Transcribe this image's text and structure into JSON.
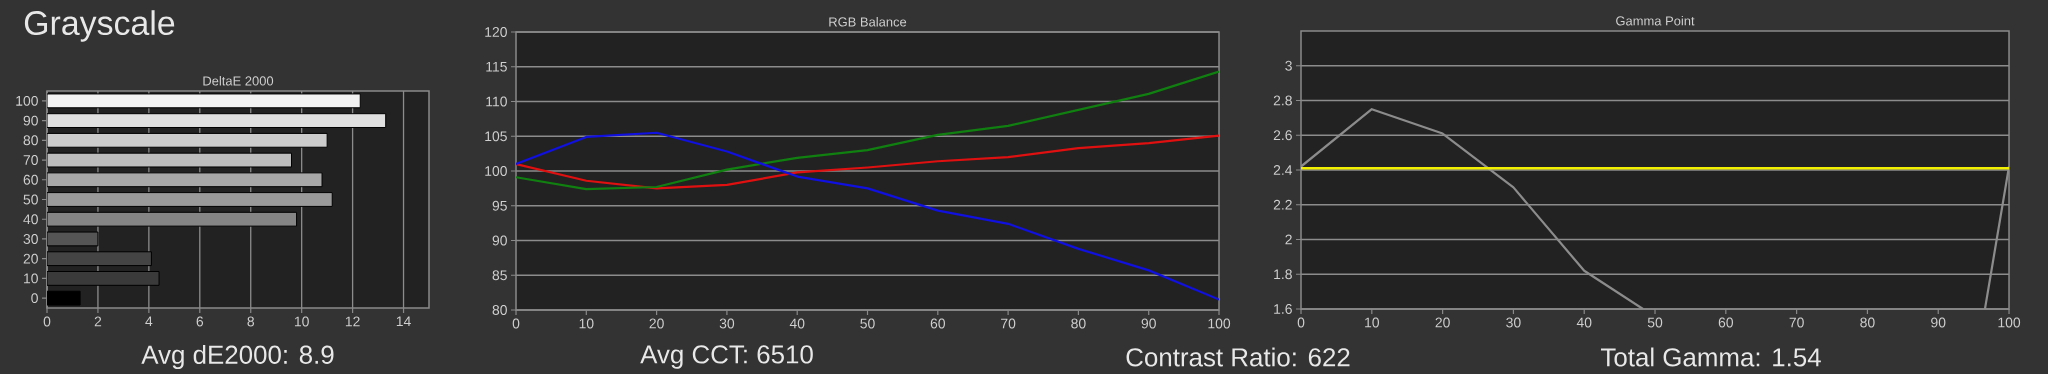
{
  "chart_data": [
    {
      "type": "bar",
      "orientation": "horizontal",
      "title": "DeltaE 2000",
      "annotations": [
        "Grayscale",
        "Avg dE2000: 8.9"
      ],
      "categories": [
        "100",
        "90",
        "80",
        "70",
        "60",
        "50",
        "40",
        "30",
        "20",
        "10",
        "0"
      ],
      "values": [
        12.3,
        13.3,
        11.0,
        9.6,
        10.8,
        11.2,
        9.8,
        2.0,
        4.1,
        4.4,
        1.3
      ],
      "colors": [
        "#f2f2f2",
        "#e0e0e0",
        "#cccccc",
        "#bdbdbd",
        "#a8a8a8",
        "#9a9a9a",
        "#858585",
        "#555555",
        "#444444",
        "#3a3a3a",
        "#000000"
      ],
      "xlim": [
        0,
        15
      ],
      "xticks": [
        0,
        2,
        4,
        6,
        8,
        10,
        12,
        14
      ],
      "grid": "x"
    },
    {
      "type": "line",
      "title": "RGB Balance",
      "annotations": [
        "Avg CCT: 6510",
        "Contrast Ratio: 622"
      ],
      "x": [
        0,
        10,
        20,
        30,
        40,
        50,
        60,
        70,
        80,
        90,
        100
      ],
      "series": [
        {
          "color": "#e01010",
          "values": [
            101.0,
            98.6,
            97.5,
            98.0,
            99.8,
            100.5,
            101.4,
            102.0,
            103.3,
            104.0,
            105.1
          ]
        },
        {
          "color": "#108010",
          "values": [
            99.1,
            97.4,
            97.7,
            100.2,
            101.9,
            103.0,
            105.2,
            106.5,
            108.8,
            111.1,
            114.3
          ]
        },
        {
          "color": "#1010e0",
          "values": [
            101.0,
            104.9,
            105.5,
            102.8,
            99.2,
            97.5,
            94.3,
            92.4,
            88.8,
            85.7,
            81.5
          ]
        }
      ],
      "xlim": [
        0,
        100
      ],
      "xticks": [
        0,
        10,
        20,
        30,
        40,
        50,
        60,
        70,
        80,
        90,
        100
      ],
      "ylim": [
        80,
        120
      ],
      "yticks": [
        80,
        85,
        90,
        95,
        100,
        105,
        110,
        115,
        120
      ],
      "grid": "y"
    },
    {
      "type": "line",
      "title": "Gamma Point",
      "annotations": [
        "Total Gamma: 1.54"
      ],
      "series": [
        {
          "color": "#8c8c8c",
          "x": [
            0,
            10,
            20,
            30,
            40,
            48.3,
            70,
            96.6,
            100
          ],
          "values": [
            2.42,
            2.75,
            2.61,
            2.3,
            1.82,
            1.6,
            null,
            1.6,
            2.42
          ]
        }
      ],
      "ref_lines": [
        {
          "axis": "y",
          "value": 2.41,
          "color": "#f0f000"
        }
      ],
      "xlim": [
        0,
        100
      ],
      "xticks": [
        0,
        10,
        20,
        30,
        40,
        50,
        60,
        70,
        80,
        90,
        100
      ],
      "ylim": [
        1.6,
        3.2
      ],
      "yticks": [
        1.6,
        1.8,
        2,
        2.2,
        2.4,
        2.6,
        2.8,
        3
      ],
      "grid": "y"
    }
  ]
}
